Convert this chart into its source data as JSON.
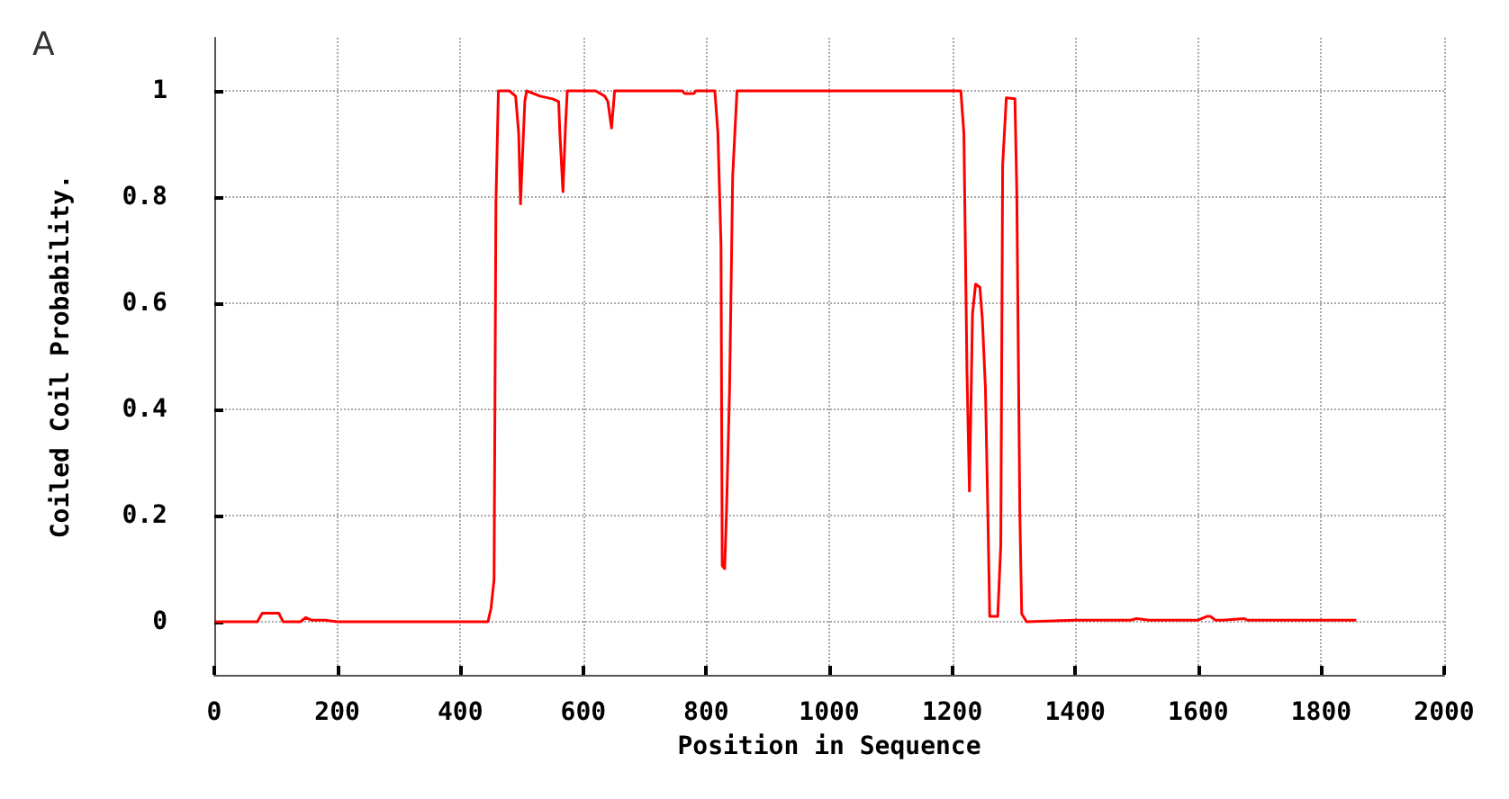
{
  "chart_data": {
    "type": "line",
    "xlabel": "Position in Sequence",
    "ylabel": "Coiled Coil Probability.",
    "annotations": [
      "A"
    ],
    "xlim": [
      0,
      2000
    ],
    "xticks": [
      0,
      200,
      400,
      600,
      800,
      1000,
      1200,
      1400,
      1600,
      1800,
      2000
    ],
    "ylim": [
      -0.1,
      1.1
    ],
    "yticks": [
      0,
      0.2,
      0.4,
      0.6,
      0.8,
      1
    ],
    "grid": true,
    "line_style": "dotted",
    "marker": "none",
    "series": [
      {
        "color": "#ff0000",
        "line_style": "solid",
        "x": [
          1,
          70,
          78,
          105,
          112,
          140,
          149,
          158,
          180,
          200,
          300,
          400,
          445,
          450,
          455,
          458,
          462,
          480,
          490,
          495,
          498,
          502,
          505,
          508,
          530,
          550,
          560,
          562,
          567,
          571,
          574,
          620,
          635,
          640,
          646,
          651,
          761,
          765,
          780,
          783,
          814,
          819,
          824,
          826,
          830,
          833,
          838,
          843,
          850,
          1000,
          1214,
          1219,
          1224,
          1228,
          1233,
          1238,
          1245,
          1249,
          1254,
          1258,
          1261,
          1274,
          1279,
          1282,
          1288,
          1302,
          1305,
          1310,
          1313,
          1321,
          1400,
          1490,
          1500,
          1520,
          1530,
          1600,
          1614,
          1620,
          1628,
          1640,
          1675,
          1680,
          1857
        ],
        "values": [
          0,
          0,
          0.016,
          0.016,
          0,
          0,
          0.008,
          0.003,
          0.003,
          0,
          0,
          0,
          0,
          0.025,
          0.08,
          0.79,
          1,
          1,
          0.99,
          0.92,
          0.787,
          0.9,
          0.98,
          1,
          0.99,
          0.985,
          0.98,
          0.92,
          0.81,
          0.93,
          1,
          1,
          0.99,
          0.98,
          0.93,
          1,
          1,
          0.995,
          0.995,
          1,
          1,
          0.92,
          0.71,
          0.106,
          0.1,
          0.21,
          0.44,
          0.84,
          1,
          1,
          1,
          0.92,
          0.47,
          0.246,
          0.58,
          0.636,
          0.63,
          0.57,
          0.44,
          0.2,
          0.01,
          0.01,
          0.145,
          0.86,
          0.987,
          0.985,
          0.81,
          0.2,
          0.015,
          0,
          0.003,
          0.003,
          0.006,
          0.003,
          0.003,
          0.003,
          0.01,
          0.01,
          0.003,
          0.003,
          0.006,
          0.003,
          0.003
        ]
      }
    ]
  }
}
